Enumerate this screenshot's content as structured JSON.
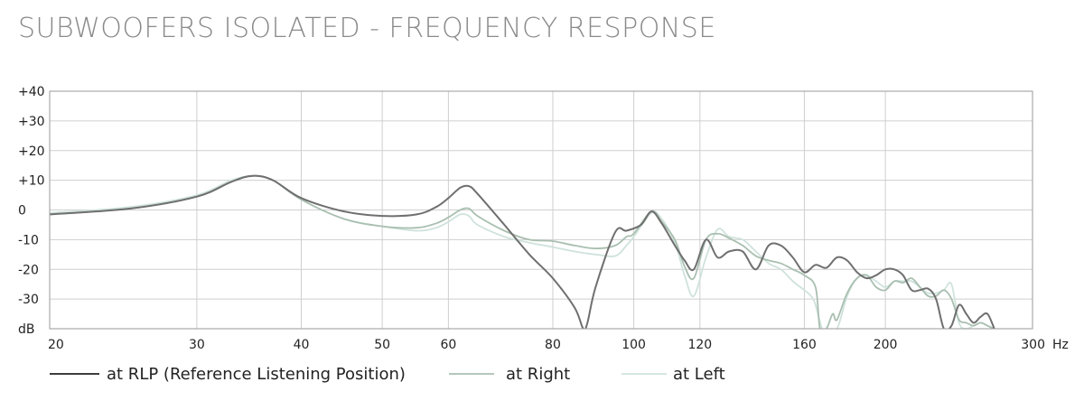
{
  "chart_data": {
    "type": "line",
    "title": "SUBWOOFERS ISOLATED - FREQUENCY RESPONSE",
    "xlabel": "Hz",
    "ylabel": "dB",
    "x_scale": "log",
    "xlim": [
      20,
      300
    ],
    "ylim": [
      -40,
      40
    ],
    "grid": true,
    "legend_position": "bottom-left",
    "x_ticks": [
      20,
      30,
      40,
      50,
      60,
      80,
      100,
      120,
      160,
      200,
      300
    ],
    "y_ticks": [
      {
        "value": 40,
        "label": "+40"
      },
      {
        "value": 30,
        "label": "+30"
      },
      {
        "value": 20,
        "label": "+20"
      },
      {
        "value": 10,
        "label": "+10"
      },
      {
        "value": 0,
        "label": "0"
      },
      {
        "value": -10,
        "label": "-10"
      },
      {
        "value": -20,
        "label": "-20"
      },
      {
        "value": -30,
        "label": "-30"
      }
    ],
    "series": [
      {
        "name": "at RLP (Reference Listening Position)",
        "color": "#6f6f6f",
        "x": [
          20,
          25,
          30,
          33,
          35,
          37,
          40,
          45,
          50,
          55,
          58,
          60,
          62,
          63.5,
          65,
          70,
          75,
          80,
          85,
          87,
          88,
          90,
          95,
          98,
          102,
          105,
          108,
          112,
          115,
          118,
          122,
          126,
          130,
          135,
          140,
          145,
          150,
          155,
          160,
          165,
          170,
          175,
          180,
          185,
          190,
          195,
          200,
          205,
          210,
          215,
          220,
          225,
          230,
          235,
          240,
          245,
          250,
          255,
          260,
          265,
          270
        ],
        "y": [
          -1.5,
          0.5,
          4.5,
          9.5,
          11.5,
          10,
          4,
          -0.5,
          -2,
          -1.5,
          1,
          4,
          7.5,
          8,
          5.5,
          -5,
          -15,
          -23,
          -33,
          -40,
          -38,
          -26,
          -7.5,
          -7,
          -5,
          -0.5,
          -4.5,
          -12,
          -17,
          -20,
          -10,
          -16,
          -14,
          -14,
          -20,
          -12,
          -12,
          -16,
          -21,
          -18.5,
          -19.5,
          -16,
          -17,
          -21,
          -23,
          -22,
          -20,
          -20,
          -22,
          -27,
          -27,
          -26.5,
          -30,
          -40,
          -39,
          -32,
          -35,
          -38,
          -36,
          -35,
          -40
        ]
      },
      {
        "name": "at Right",
        "color": "#a9bfb0",
        "x": [
          20,
          25,
          30,
          33,
          35,
          37,
          40,
          45,
          50,
          55,
          58,
          60,
          62,
          63.5,
          65,
          70,
          75,
          80,
          85,
          90,
          95,
          98,
          100,
          105,
          108,
          112,
          115,
          118,
          122,
          126,
          130,
          135,
          140,
          145,
          150,
          155,
          160,
          165,
          167,
          170,
          173,
          175,
          180,
          185,
          190,
          195,
          200,
          205,
          210,
          215,
          220,
          225,
          230,
          235,
          240,
          245,
          250,
          255,
          260,
          265,
          270
        ],
        "y": [
          -1.5,
          0.5,
          4.5,
          9.5,
          11.5,
          10,
          3.5,
          -3,
          -5.5,
          -6,
          -4.5,
          -2.5,
          0,
          0.5,
          -2,
          -7,
          -10,
          -10.5,
          -12,
          -13,
          -12,
          -9,
          -8,
          -0.5,
          -4,
          -10,
          -19,
          -23,
          -10,
          -8,
          -9.5,
          -12,
          -15.5,
          -17,
          -18,
          -20,
          -22,
          -26,
          -40,
          -40,
          -35,
          -37,
          -28,
          -23,
          -22,
          -26,
          -27,
          -24,
          -24.5,
          -23,
          -26,
          -29,
          -29,
          -27,
          -30,
          -37,
          -38,
          -39,
          -38,
          -39,
          -40
        ]
      },
      {
        "name": "at Left",
        "color": "#cfe2dc",
        "x": [
          20,
          25,
          30,
          33,
          35,
          37,
          40,
          45,
          50,
          55,
          58,
          60,
          62,
          63.5,
          65,
          70,
          75,
          80,
          85,
          90,
          95,
          98,
          100,
          105,
          108,
          112,
          115,
          118,
          122,
          126,
          130,
          135,
          140,
          145,
          150,
          155,
          160,
          163,
          165,
          168,
          170,
          175,
          180,
          185,
          190,
          195,
          200,
          205,
          210,
          215,
          220,
          225,
          230,
          235,
          240,
          245,
          250,
          255,
          260,
          265,
          270
        ],
        "y": [
          -1,
          1,
          5,
          10,
          11.5,
          10,
          3.5,
          -3,
          -5.5,
          -7,
          -6,
          -4,
          -1.5,
          -2,
          -5,
          -9,
          -11,
          -12.5,
          -14,
          -15,
          -15.5,
          -12,
          -9,
          -1,
          -3,
          -11,
          -22,
          -29,
          -16,
          -6.5,
          -9,
          -10,
          -14,
          -18,
          -20,
          -24,
          -27,
          -29,
          -32,
          -40,
          -40,
          -40,
          -29,
          -23,
          -22,
          -24,
          -26,
          -24,
          -24,
          -24,
          -26,
          -28,
          -28,
          -27,
          -25,
          -38,
          -40,
          -39,
          -38,
          -39,
          -40
        ]
      }
    ]
  }
}
